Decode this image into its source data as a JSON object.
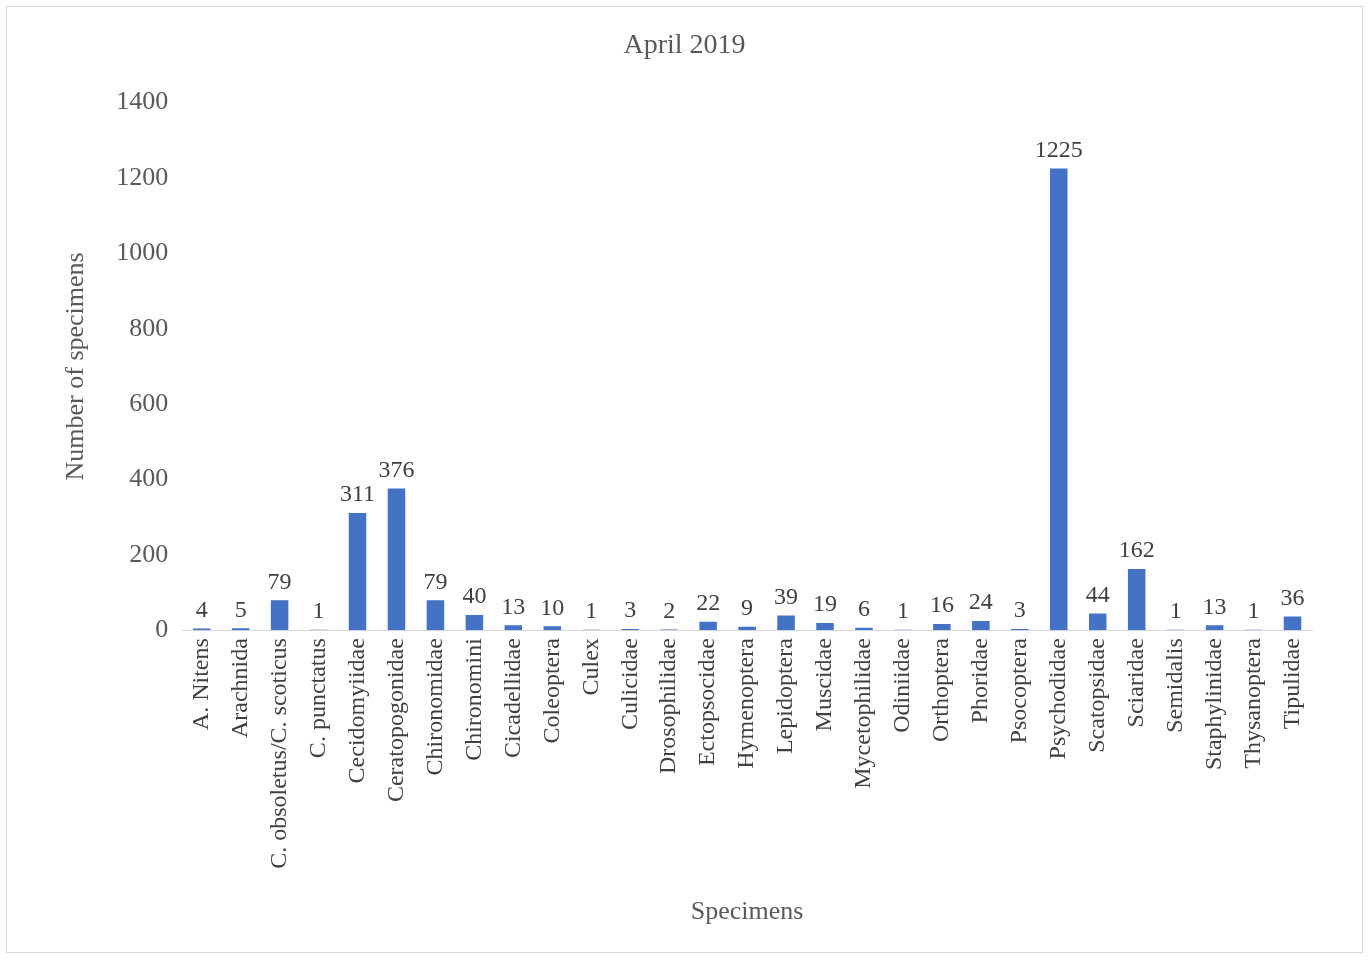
{
  "chart_data": {
    "type": "bar",
    "title": "April 2019",
    "xlabel": "Specimens",
    "ylabel": "Number of specimens",
    "categories": [
      "A. Nitens",
      "Arachnida",
      "C. obsoletus/C. scoticus",
      "C. punctatus",
      "Cecidomyiidae",
      "Ceratopogonidae",
      "Chironomidae",
      "Chironomini",
      "Cicadellidae",
      "Coleoptera",
      "Culex",
      "Culicidae",
      "Drosophilidae",
      "Ectopsocidae",
      "Hymenoptera",
      "Lepidoptera",
      "Muscidae",
      "Mycetophilidae",
      "Odiniidae",
      "Orthoptera",
      "Phoridae",
      "Psocoptera",
      "Psychodidae",
      "Scatopsidae",
      "Sciaridae",
      "Semidalis",
      "Staphylinidae",
      "Thysanoptera",
      "Tipulidae"
    ],
    "values": [
      4,
      5,
      79,
      1,
      311,
      376,
      79,
      40,
      13,
      10,
      1,
      3,
      2,
      22,
      9,
      39,
      19,
      6,
      1,
      16,
      24,
      3,
      1225,
      44,
      162,
      1,
      13,
      1,
      36
    ],
    "color": "#4472c4",
    "ylim": [
      0,
      1400
    ],
    "yticks": [
      0,
      200,
      400,
      600,
      800,
      1000,
      1200,
      1400
    ],
    "grid": false,
    "legend": false,
    "data_labels": true
  }
}
